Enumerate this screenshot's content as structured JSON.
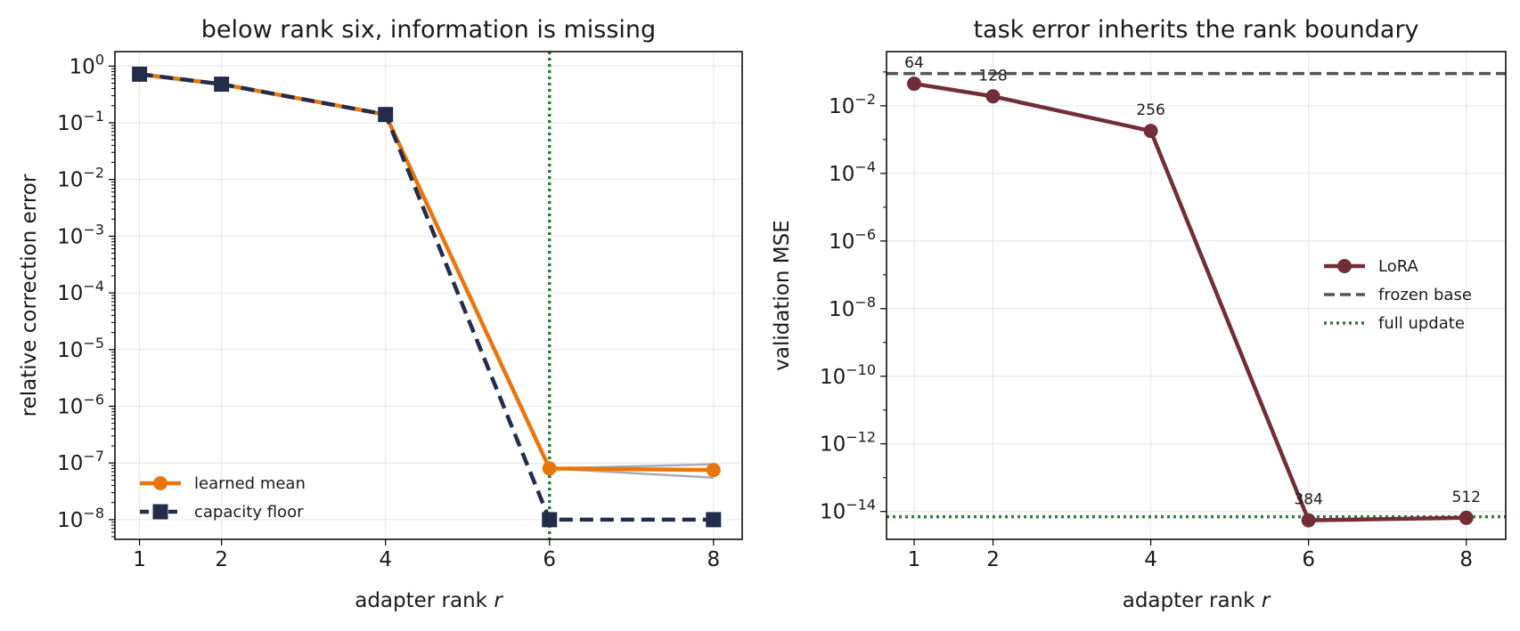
{
  "chart_data": [
    {
      "type": "line",
      "title": "below rank six, information is missing",
      "xlabel": "adapter rank r",
      "ylabel": "relative correction error",
      "x": [
        1,
        2,
        4,
        6,
        8
      ],
      "xticks": [
        "1",
        "2",
        "4",
        "6",
        "8"
      ],
      "xlim": [
        0.7,
        8.35
      ],
      "ylim": [
        4.5e-09,
        1.8
      ],
      "yscale": "log",
      "yticks": [
        1,
        0.1,
        0.01,
        0.001,
        0.0001,
        1e-05,
        1e-06,
        1e-07,
        1e-08
      ],
      "ytick_exponents": [
        "0",
        "−1",
        "−2",
        "−3",
        "−4",
        "−5",
        "−6",
        "−7",
        "−8"
      ],
      "grid": true,
      "legend_position": "lower-left",
      "vline": {
        "x": 6,
        "color": "#2e7d32",
        "style": "dotted"
      },
      "series": [
        {
          "name": "learned mean",
          "values": [
            0.72,
            0.48,
            0.14,
            8e-08,
            7.5e-08
          ],
          "color": "#e8760a",
          "marker": "circle",
          "style": "solid"
        },
        {
          "name": "capacity floor",
          "values": [
            0.72,
            0.48,
            0.14,
            1e-08,
            1e-08
          ],
          "color": "#232d4b",
          "marker": "square",
          "style": "dashed"
        }
      ],
      "seed_traces": [
        {
          "values": [
            0.72,
            0.48,
            0.14,
            8e-08,
            9.5e-08
          ],
          "color": "#a9acb8"
        },
        {
          "values": [
            0.72,
            0.48,
            0.14,
            8e-08,
            5.5e-08
          ],
          "color": "#a9acb8"
        }
      ]
    },
    {
      "type": "line",
      "title": "task error inherits the rank boundary",
      "xlabel": "adapter rank r",
      "ylabel": "validation MSE",
      "x": [
        1,
        2,
        4,
        6,
        8
      ],
      "xticks": [
        "1",
        "2",
        "4",
        "6",
        "8"
      ],
      "xlim": [
        0.65,
        8.5
      ],
      "ylim": [
        1.5e-15,
        0.4
      ],
      "yscale": "log",
      "yticks": [
        0.01,
        0.0001,
        1e-06,
        1e-08,
        1e-10,
        1e-12,
        1e-14
      ],
      "ytick_exponents": [
        "−2",
        "−4",
        "−6",
        "−8",
        "−10",
        "−12",
        "−14"
      ],
      "grid": true,
      "legend_position": "center-right",
      "series": [
        {
          "name": "LoRA",
          "values": [
            0.045,
            0.019,
            0.0018,
            5.5e-15,
            6.5e-15
          ],
          "color": "#722e36",
          "marker": "circle",
          "style": "solid"
        }
      ],
      "point_labels": [
        "64",
        "128",
        "256",
        "384",
        "512"
      ],
      "hlines": [
        {
          "name": "frozen base",
          "y": 0.09,
          "color": "#555555",
          "style": "dashed"
        },
        {
          "name": "full update",
          "y": 7e-15,
          "color": "#2e7d32",
          "style": "dotted"
        }
      ]
    }
  ]
}
